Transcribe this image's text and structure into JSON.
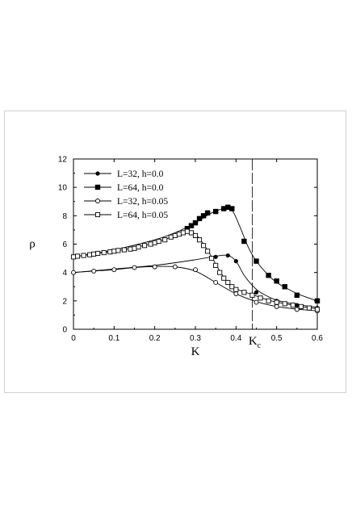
{
  "chart_data": {
    "type": "scatter",
    "xlabel": "K",
    "ylabel": "ρ",
    "xlim": [
      0,
      0.6
    ],
    "ylim": [
      0,
      12
    ],
    "x_ticks": [
      0,
      0.1,
      0.2,
      0.3,
      0.4,
      0.5,
      0.6
    ],
    "x_tick_labels": [
      "0",
      "0.1",
      "0.2",
      "0.3",
      "0.4",
      "0.5",
      "0.6"
    ],
    "y_ticks": [
      0,
      2,
      4,
      6,
      8,
      10,
      12
    ],
    "y_tick_labels": [
      "0",
      "2",
      "4",
      "6",
      "8",
      "10",
      "12"
    ],
    "legend_position": "top-left",
    "annotation": {
      "label": "K",
      "subscript": "c",
      "x": 0.44
    },
    "series": [
      {
        "name": "L=32, h=0.0",
        "marker": "filled-circle",
        "points": [
          [
            0.35,
            5.1
          ],
          [
            0.38,
            5.2
          ],
          [
            0.4,
            4.8
          ],
          [
            0.45,
            2.6
          ],
          [
            0.5,
            2.0
          ],
          [
            0.55,
            1.7
          ],
          [
            0.6,
            1.5
          ]
        ],
        "curve": [
          [
            0.0,
            4.0
          ],
          [
            0.1,
            4.25
          ],
          [
            0.2,
            4.5
          ],
          [
            0.3,
            4.9
          ],
          [
            0.35,
            5.15
          ],
          [
            0.38,
            5.2
          ],
          [
            0.4,
            4.8
          ],
          [
            0.42,
            3.8
          ],
          [
            0.44,
            3.1
          ],
          [
            0.46,
            2.6
          ],
          [
            0.5,
            2.05
          ],
          [
            0.55,
            1.75
          ],
          [
            0.6,
            1.55
          ]
        ]
      },
      {
        "name": "L=64, h=0.0",
        "marker": "filled-square",
        "points": [
          [
            0.28,
            7.1
          ],
          [
            0.29,
            7.3
          ],
          [
            0.3,
            7.5
          ],
          [
            0.31,
            7.8
          ],
          [
            0.32,
            8.0
          ],
          [
            0.33,
            8.2
          ],
          [
            0.35,
            8.3
          ],
          [
            0.37,
            8.5
          ],
          [
            0.38,
            8.6
          ],
          [
            0.39,
            8.5
          ],
          [
            0.42,
            6.2
          ],
          [
            0.45,
            4.8
          ],
          [
            0.48,
            3.8
          ],
          [
            0.5,
            3.4
          ],
          [
            0.52,
            3.0
          ],
          [
            0.55,
            2.4
          ],
          [
            0.6,
            2.0
          ]
        ],
        "curve": [
          [
            0.0,
            5.1
          ],
          [
            0.1,
            5.6
          ],
          [
            0.2,
            6.3
          ],
          [
            0.25,
            6.8
          ],
          [
            0.3,
            7.5
          ],
          [
            0.34,
            8.2
          ],
          [
            0.37,
            8.5
          ],
          [
            0.39,
            8.4
          ],
          [
            0.41,
            7.2
          ],
          [
            0.43,
            5.8
          ],
          [
            0.45,
            4.8
          ],
          [
            0.48,
            3.8
          ],
          [
            0.5,
            3.3
          ],
          [
            0.53,
            2.8
          ],
          [
            0.56,
            2.4
          ],
          [
            0.6,
            2.0
          ]
        ]
      },
      {
        "name": "L=32, h=0.05",
        "marker": "open-circle",
        "points": [
          [
            0.0,
            4.0
          ],
          [
            0.05,
            4.1
          ],
          [
            0.1,
            4.2
          ],
          [
            0.15,
            4.35
          ],
          [
            0.2,
            4.4
          ],
          [
            0.25,
            4.4
          ],
          [
            0.3,
            4.2
          ],
          [
            0.35,
            3.3
          ],
          [
            0.4,
            2.5
          ],
          [
            0.45,
            1.9
          ],
          [
            0.5,
            1.6
          ],
          [
            0.55,
            1.4
          ],
          [
            0.6,
            1.3
          ]
        ],
        "curve": [
          [
            0.0,
            4.0
          ],
          [
            0.05,
            4.1
          ],
          [
            0.1,
            4.2
          ],
          [
            0.15,
            4.35
          ],
          [
            0.2,
            4.42
          ],
          [
            0.25,
            4.4
          ],
          [
            0.3,
            4.1
          ],
          [
            0.35,
            3.3
          ],
          [
            0.4,
            2.5
          ],
          [
            0.45,
            1.95
          ],
          [
            0.5,
            1.6
          ],
          [
            0.55,
            1.42
          ],
          [
            0.6,
            1.3
          ]
        ]
      },
      {
        "name": "L=64, h=0.05",
        "marker": "open-square",
        "points": [
          [
            0.0,
            5.1
          ],
          [
            0.01,
            5.15
          ],
          [
            0.025,
            5.2
          ],
          [
            0.04,
            5.25
          ],
          [
            0.05,
            5.3
          ],
          [
            0.06,
            5.35
          ],
          [
            0.075,
            5.4
          ],
          [
            0.09,
            5.45
          ],
          [
            0.1,
            5.5
          ],
          [
            0.11,
            5.55
          ],
          [
            0.125,
            5.6
          ],
          [
            0.14,
            5.65
          ],
          [
            0.15,
            5.7
          ],
          [
            0.16,
            5.8
          ],
          [
            0.175,
            5.9
          ],
          [
            0.19,
            6.0
          ],
          [
            0.2,
            6.1
          ],
          [
            0.21,
            6.2
          ],
          [
            0.225,
            6.3
          ],
          [
            0.24,
            6.5
          ],
          [
            0.25,
            6.6
          ],
          [
            0.26,
            6.7
          ],
          [
            0.27,
            6.8
          ],
          [
            0.28,
            6.9
          ],
          [
            0.29,
            6.8
          ],
          [
            0.3,
            6.6
          ],
          [
            0.31,
            6.3
          ],
          [
            0.32,
            5.9
          ],
          [
            0.33,
            5.5
          ],
          [
            0.34,
            5.0
          ],
          [
            0.35,
            4.5
          ],
          [
            0.36,
            4.0
          ],
          [
            0.37,
            3.6
          ],
          [
            0.38,
            3.3
          ],
          [
            0.39,
            3.0
          ],
          [
            0.4,
            2.8
          ],
          [
            0.42,
            2.6
          ],
          [
            0.44,
            2.4
          ],
          [
            0.46,
            2.2
          ],
          [
            0.48,
            2.0
          ],
          [
            0.5,
            1.9
          ],
          [
            0.52,
            1.8
          ],
          [
            0.54,
            1.7
          ],
          [
            0.56,
            1.6
          ],
          [
            0.58,
            1.5
          ],
          [
            0.6,
            1.4
          ]
        ],
        "curve": [
          [
            0.0,
            5.1
          ],
          [
            0.05,
            5.3
          ],
          [
            0.1,
            5.5
          ],
          [
            0.15,
            5.75
          ],
          [
            0.2,
            6.1
          ],
          [
            0.25,
            6.6
          ],
          [
            0.28,
            6.9
          ],
          [
            0.3,
            6.7
          ],
          [
            0.32,
            6.0
          ],
          [
            0.34,
            5.1
          ],
          [
            0.36,
            4.1
          ],
          [
            0.38,
            3.3
          ],
          [
            0.4,
            2.85
          ],
          [
            0.44,
            2.45
          ],
          [
            0.48,
            2.05
          ],
          [
            0.52,
            1.8
          ],
          [
            0.56,
            1.6
          ],
          [
            0.6,
            1.45
          ]
        ]
      }
    ]
  }
}
